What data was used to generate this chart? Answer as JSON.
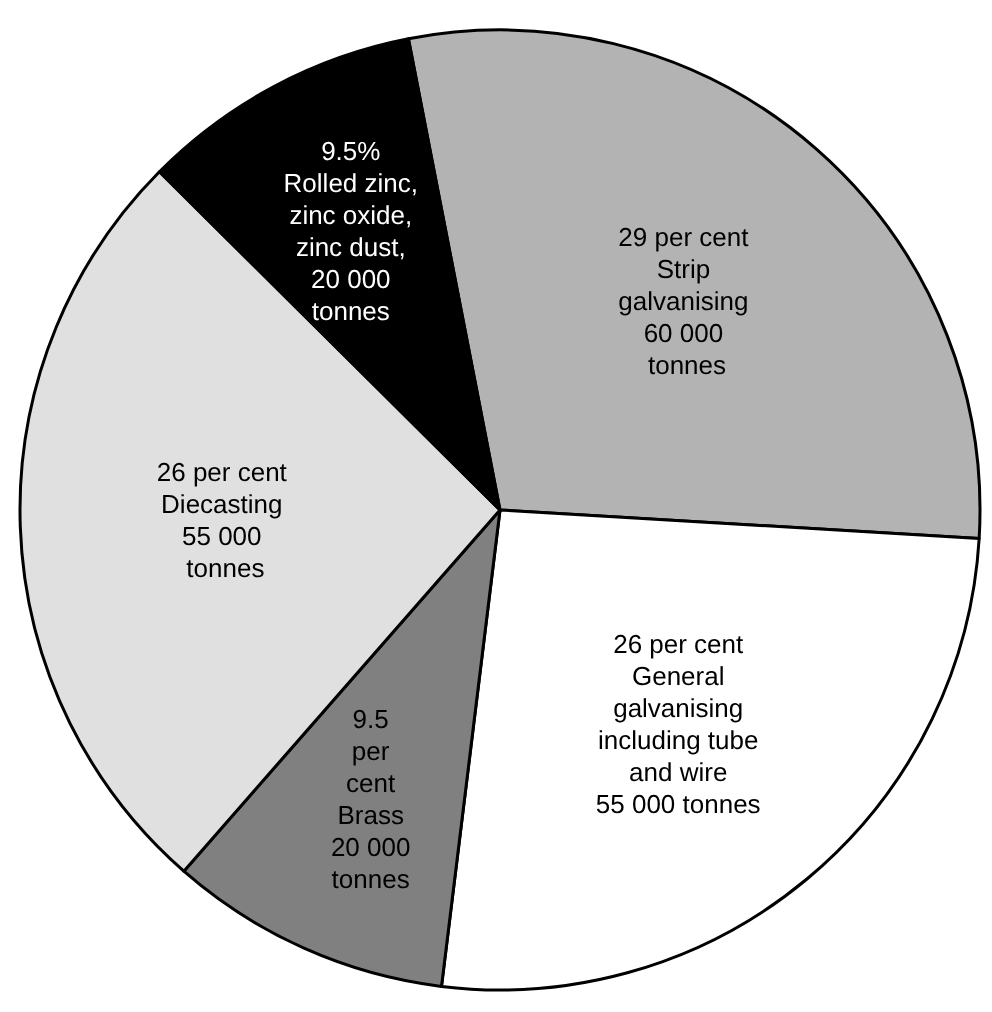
{
  "chart_data": {
    "type": "pie",
    "categories": [
      "29 per cent\nStrip\ngalvanising\n60 000\n tonnes",
      "26 per cent\nGeneral\ngalvanising\nincluding tube\nand wire\n55 000 tonnes",
      "9.5\nper\ncent\nBrass\n20 000\ntonnes",
      "26 per cent\nDiecasting\n55 000\n tonnes",
      "9.5%\nRolled zinc,\nzinc oxide,\nzinc dust,\n20 000\ntonnes"
    ],
    "values": [
      29,
      26,
      9.5,
      26,
      9.5
    ],
    "colors": [
      "#b3b3b3",
      "#ffffff",
      "#808080",
      "#e0e0e0",
      "#000000"
    ],
    "legend": false
  }
}
